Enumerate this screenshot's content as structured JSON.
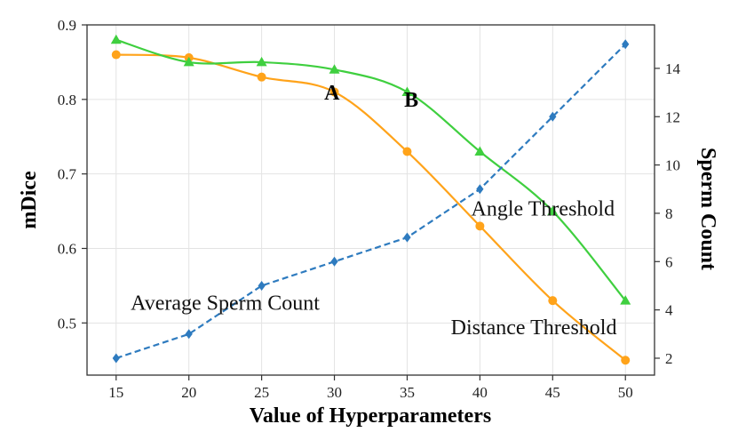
{
  "chart_data": {
    "type": "line",
    "xlabel": "Value  of  Hyperparameters",
    "ylabel": "mDice",
    "y2label": "Sperm Count",
    "x": [
      15,
      20,
      25,
      30,
      35,
      40,
      45,
      50
    ],
    "xlim": [
      13,
      52
    ],
    "ylim": [
      0.43,
      0.9
    ],
    "y2lim": [
      1.3,
      15.8
    ],
    "xticks": [
      "15",
      "20",
      "25",
      "30",
      "35",
      "40",
      "45",
      "50"
    ],
    "yticks": [
      "0.5",
      "0.6",
      "0.7",
      "0.8",
      "0.9"
    ],
    "y2ticks": [
      "2",
      "4",
      "6",
      "8",
      "10",
      "12",
      "14"
    ],
    "grid": true,
    "series": [
      {
        "name": "Distance Threshold",
        "axis": "left",
        "color": "#ffa31a",
        "marker": "circle",
        "style": "solid",
        "smooth": true,
        "values": [
          0.86,
          0.856,
          0.83,
          0.81,
          0.73,
          0.63,
          0.53,
          0.45
        ]
      },
      {
        "name": "Angle Threshold",
        "axis": "left",
        "color": "#3fcf3f",
        "marker": "triangle",
        "style": "solid",
        "smooth": true,
        "values": [
          0.88,
          0.85,
          0.85,
          0.84,
          0.81,
          0.73,
          0.65,
          0.53
        ]
      },
      {
        "name": "Average Sperm Count",
        "axis": "right",
        "color": "#2e7bbf",
        "marker": "diamond",
        "style": "dashed",
        "smooth": false,
        "values": [
          2,
          3,
          5,
          6,
          7,
          9,
          12,
          15
        ]
      }
    ],
    "annotations": [
      {
        "text": "A",
        "x": 29.3,
        "y": 0.8,
        "axis": "left",
        "bold": true
      },
      {
        "text": "B",
        "x": 34.8,
        "y": 0.79,
        "axis": "left",
        "bold": true
      },
      {
        "text": "Angle Threshold",
        "x": 39.4,
        "y": 7.9,
        "axis": "right",
        "bold": false
      },
      {
        "text": "Average Sperm Count",
        "x": 16.0,
        "y": 4.0,
        "axis": "right",
        "bold": false
      },
      {
        "text": "Distance Threshold",
        "x": 38.0,
        "y": 3.0,
        "axis": "right",
        "bold": false
      }
    ]
  }
}
